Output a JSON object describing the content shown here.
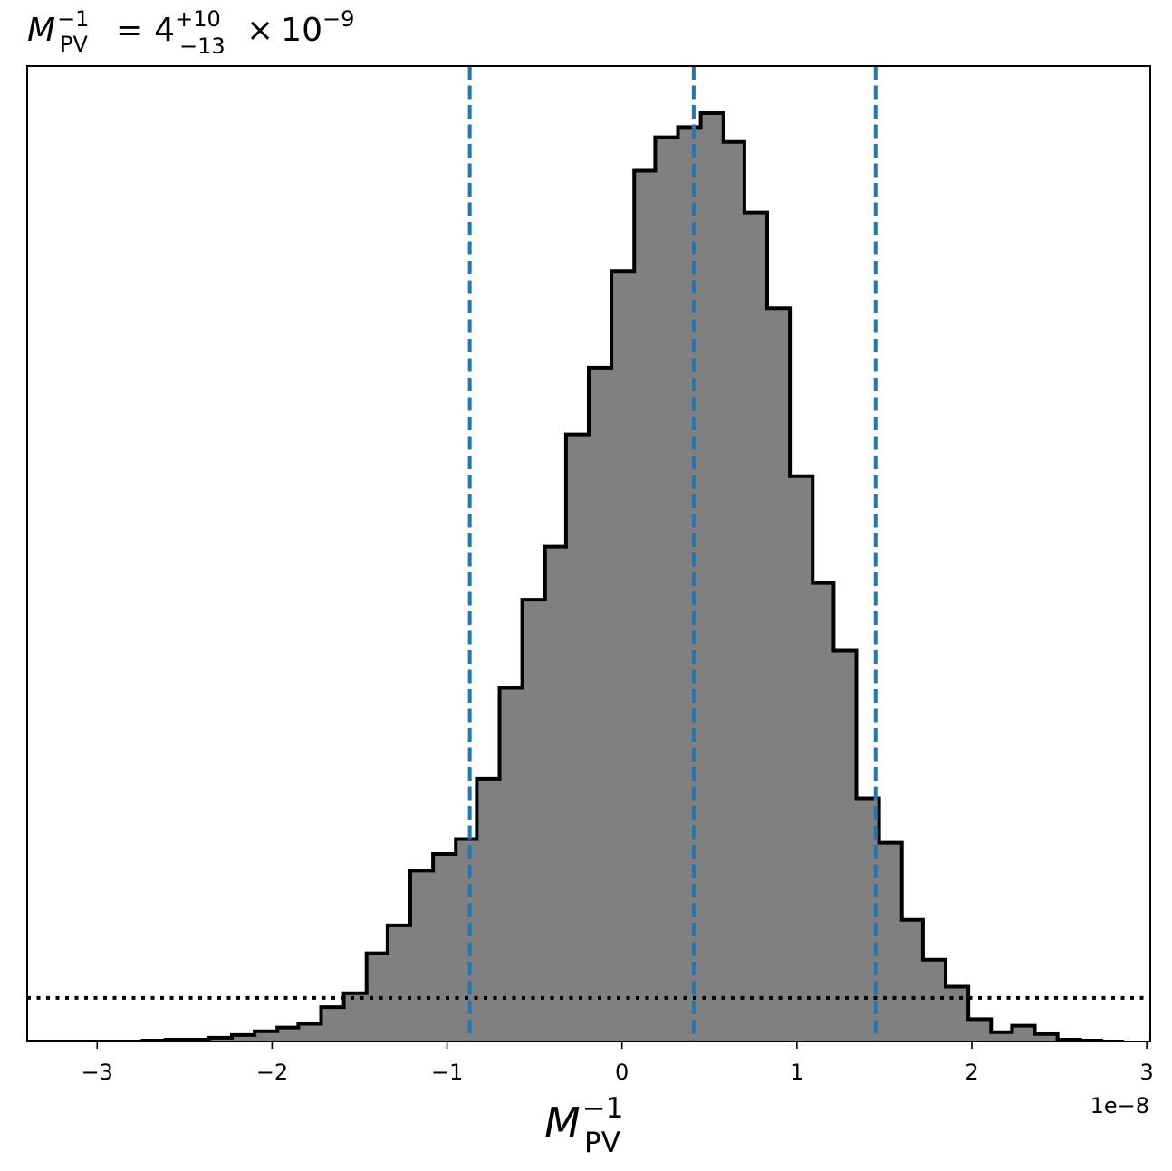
{
  "chart_data": {
    "type": "histogram",
    "title": {
      "symbol": "M",
      "subscript": "PV",
      "superscript": "−1",
      "equals": "=",
      "value": "4",
      "err_plus": "+10",
      "err_minus": "−13",
      "times": "×",
      "base": "10",
      "exponent": "−9"
    },
    "xlabel": {
      "symbol": "M",
      "subscript": "PV",
      "superscript": "−1"
    },
    "x_offset_text": "1e−8",
    "xlim": [
      -3.4,
      3.02
    ],
    "ylim": [
      0,
      1.0
    ],
    "x_ticks": [
      {
        "value": -3,
        "label": "−3"
      },
      {
        "value": -2,
        "label": "−2"
      },
      {
        "value": -1,
        "label": "−1"
      },
      {
        "value": 0,
        "label": "0"
      },
      {
        "value": 1,
        "label": "1"
      },
      {
        "value": 2,
        "label": "2"
      },
      {
        "value": 3,
        "label": "3"
      }
    ],
    "bin_edges": [
      -3.4,
      -2.74,
      -2.61,
      -2.48,
      -2.36,
      -2.23,
      -2.1,
      -1.97,
      -1.85,
      -1.72,
      -1.59,
      -1.46,
      -1.34,
      -1.21,
      -1.08,
      -0.95,
      -0.83,
      -0.7,
      -0.57,
      -0.44,
      -0.32,
      -0.19,
      -0.06,
      0.07,
      0.19,
      0.32,
      0.45,
      0.58,
      0.7,
      0.83,
      0.96,
      1.09,
      1.21,
      1.34,
      1.47,
      1.6,
      1.72,
      1.85,
      1.98,
      2.11,
      2.23,
      2.36,
      2.49,
      2.62,
      2.74,
      2.87
    ],
    "counts": [
      0.0,
      0.001,
      0.002,
      0.002,
      0.004,
      0.007,
      0.011,
      0.015,
      0.019,
      0.037,
      0.052,
      0.095,
      0.125,
      0.184,
      0.202,
      0.218,
      0.283,
      0.381,
      0.476,
      0.533,
      0.654,
      0.726,
      0.83,
      0.938,
      0.974,
      0.985,
      1.0,
      0.969,
      0.893,
      0.79,
      0.609,
      0.494,
      0.421,
      0.262,
      0.214,
      0.131,
      0.088,
      0.059,
      0.024,
      0.01,
      0.017,
      0.008,
      0.002,
      0.001,
      0.0
    ],
    "quantile_lines": {
      "values": [
        -0.87,
        0.41,
        1.45
      ],
      "color": "#1f77b4",
      "style": "dashed"
    },
    "reference_line": {
      "y": 0.047,
      "color": "#000000",
      "style": "dotted"
    },
    "fill_color": "#808080",
    "edge_color": "#000000"
  }
}
